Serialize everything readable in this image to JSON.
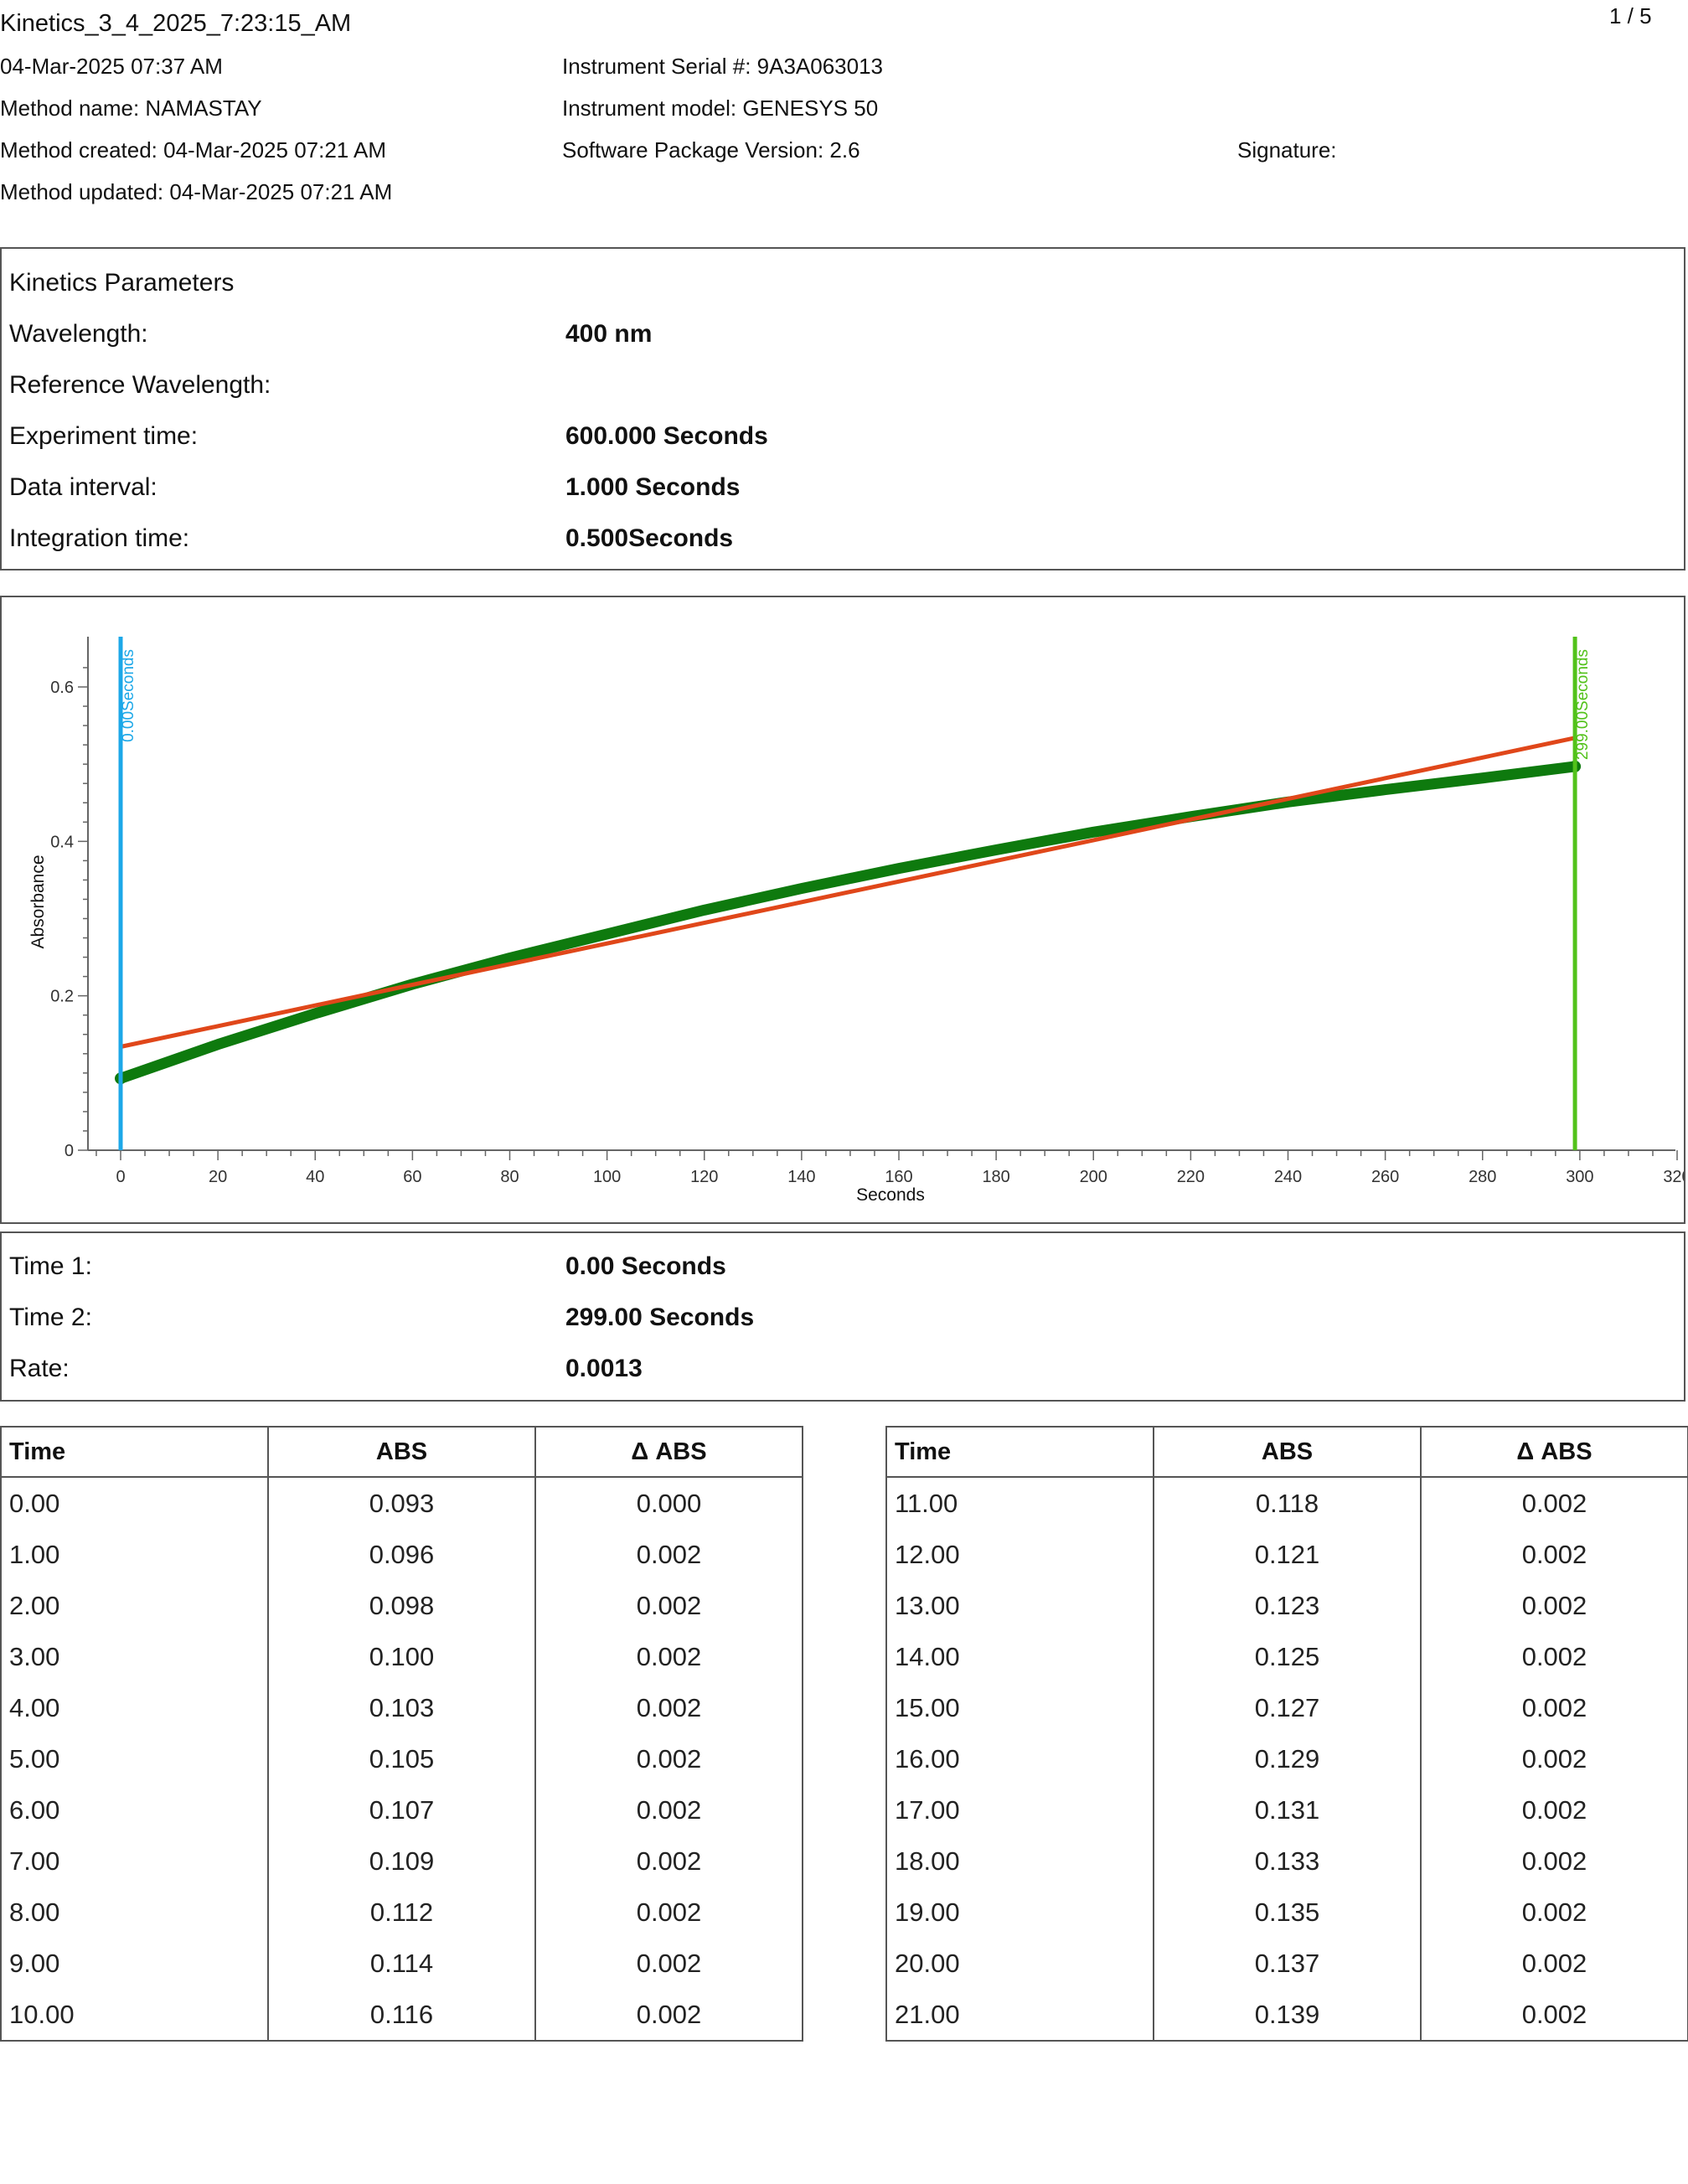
{
  "header": {
    "file_title": "Kinetics_3_4_2025_7:23:15_AM",
    "page_indicator": "1 / 5",
    "date_time": "04-Mar-2025 07:37 AM",
    "method_name": "Method name: NAMASTAY",
    "method_created": "Method created: 04-Mar-2025 07:21 AM",
    "method_updated": "Method updated: 04-Mar-2025 07:21 AM",
    "instrument_serial": "Instrument Serial #: 9A3A063013",
    "instrument_model": "Instrument model: GENESYS 50",
    "software_version": "Software Package Version: 2.6",
    "signature_label": "Signature:"
  },
  "parameters": {
    "heading": "Kinetics Parameters",
    "rows": [
      {
        "label": "Wavelength:",
        "value": "400 nm"
      },
      {
        "label": "Reference Wavelength:",
        "value": ""
      },
      {
        "label": "Experiment time:",
        "value": "600.000 Seconds"
      },
      {
        "label": "Data interval:",
        "value": "1.000 Seconds"
      },
      {
        "label": "Integration time:",
        "value": "0.500Seconds"
      }
    ]
  },
  "chart_data": {
    "type": "line",
    "xlabel": "Seconds",
    "ylabel": "Absorbance",
    "xlim": [
      -7,
      320
    ],
    "ylim": [
      0,
      0.63
    ],
    "x_ticks": [
      0,
      20,
      40,
      60,
      80,
      100,
      120,
      140,
      160,
      180,
      200,
      220,
      240,
      260,
      280,
      300,
      320
    ],
    "y_ticks": [
      0,
      0.2,
      0.4,
      0.6
    ],
    "y_tick_labels": [
      "0",
      "0.2",
      "0.4",
      "0.6"
    ],
    "series": [
      {
        "x": [
          0,
          20,
          40,
          60,
          80,
          100,
          120,
          140,
          160,
          180,
          200,
          220,
          240,
          260,
          280,
          299
        ],
        "y": [
          0.093,
          0.137,
          0.177,
          0.215,
          0.249,
          0.28,
          0.311,
          0.339,
          0.365,
          0.389,
          0.412,
          0.432,
          0.451,
          0.467,
          0.482,
          0.497
        ],
        "color": "#0e7a0e"
      },
      {
        "x": [
          0,
          299
        ],
        "y": [
          0.134,
          0.534
        ],
        "color": "#e0471a"
      }
    ],
    "markers": [
      {
        "x": 0,
        "label": "0.00Seconds",
        "color": "#1da8e8"
      },
      {
        "x": 299,
        "label": "299.00Seconds",
        "color": "#52c21a"
      }
    ],
    "grid": false
  },
  "results": {
    "rows": [
      {
        "label": "Time 1:",
        "value": "0.00 Seconds"
      },
      {
        "label": "Time 2:",
        "value": "299.00 Seconds"
      },
      {
        "label": "Rate:",
        "value": "0.0013"
      }
    ]
  },
  "tables": {
    "headers": [
      "Time",
      "ABS",
      "Δ ABS"
    ],
    "left": [
      [
        "0.00",
        "0.093",
        "0.000"
      ],
      [
        "1.00",
        "0.096",
        "0.002"
      ],
      [
        "2.00",
        "0.098",
        "0.002"
      ],
      [
        "3.00",
        "0.100",
        "0.002"
      ],
      [
        "4.00",
        "0.103",
        "0.002"
      ],
      [
        "5.00",
        "0.105",
        "0.002"
      ],
      [
        "6.00",
        "0.107",
        "0.002"
      ],
      [
        "7.00",
        "0.109",
        "0.002"
      ],
      [
        "8.00",
        "0.112",
        "0.002"
      ],
      [
        "9.00",
        "0.114",
        "0.002"
      ],
      [
        "10.00",
        "0.116",
        "0.002"
      ]
    ],
    "right": [
      [
        "11.00",
        "0.118",
        "0.002"
      ],
      [
        "12.00",
        "0.121",
        "0.002"
      ],
      [
        "13.00",
        "0.123",
        "0.002"
      ],
      [
        "14.00",
        "0.125",
        "0.002"
      ],
      [
        "15.00",
        "0.127",
        "0.002"
      ],
      [
        "16.00",
        "0.129",
        "0.002"
      ],
      [
        "17.00",
        "0.131",
        "0.002"
      ],
      [
        "18.00",
        "0.133",
        "0.002"
      ],
      [
        "19.00",
        "0.135",
        "0.002"
      ],
      [
        "20.00",
        "0.137",
        "0.002"
      ],
      [
        "21.00",
        "0.139",
        "0.002"
      ]
    ]
  }
}
